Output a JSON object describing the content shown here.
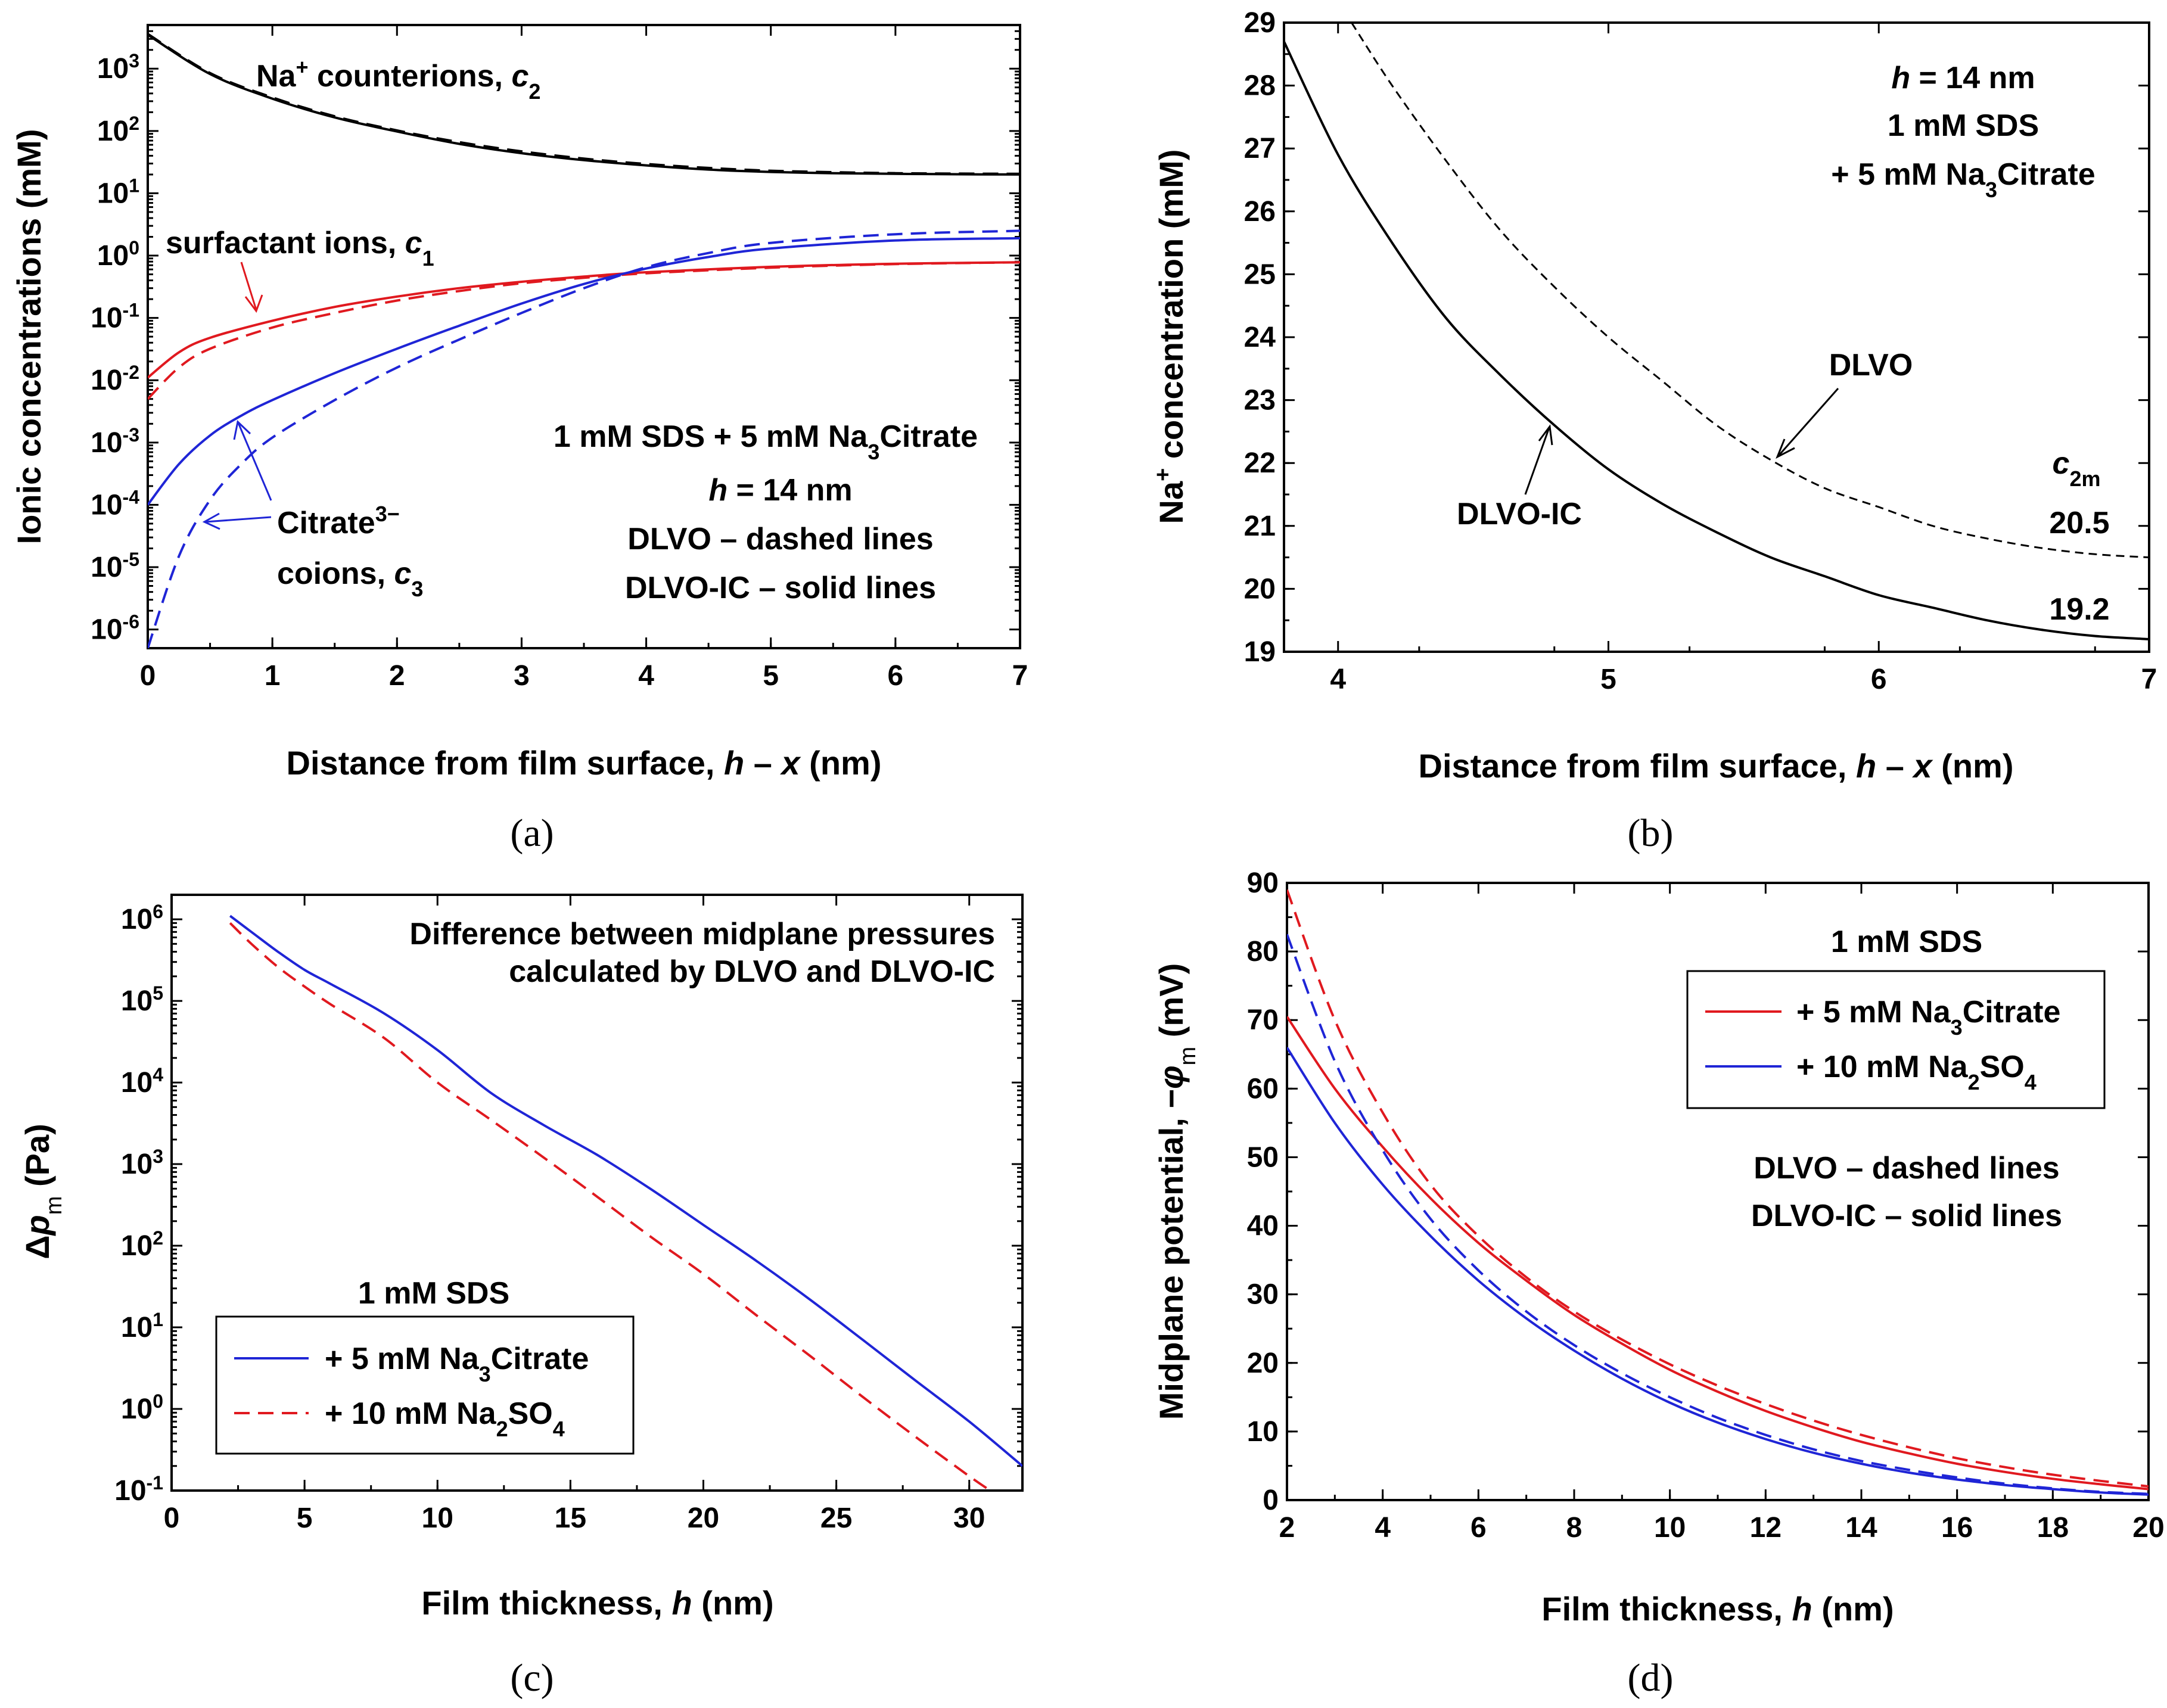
{
  "captions": {
    "a": "(a)",
    "b": "(b)",
    "c": "(c)",
    "d": "(d)"
  },
  "colors": {
    "red": "#e0191f",
    "blue": "#1f25d6",
    "black": "#000000"
  },
  "chart_data": [
    {
      "id": "a",
      "type": "line",
      "xlabel": "Distance from film surface, h − x (nm)",
      "ylabel": "Ionic concentrations (mM)",
      "xlim": [
        0,
        7
      ],
      "ylim_log10": [
        -6.3,
        3.7
      ],
      "xticks": [
        "0",
        "1",
        "2",
        "3",
        "4",
        "5",
        "6",
        "7"
      ],
      "yticks": [
        "10-6",
        "10-5",
        "10-4",
        "10-3",
        "10-2",
        "10-1",
        "100",
        "101",
        "102",
        "103"
      ],
      "annotations": {
        "na": "Na+ counterions, c2",
        "surf": "surfactant ions, c1",
        "cit1": "Citrate3−",
        "cit2": "coions, c3",
        "info1": "1 mM SDS + 5 mM Na3Citrate",
        "info2": "h = 14 nm",
        "info3": "DLVO – dashed lines",
        "info4": "DLVO-IC – solid lines"
      },
      "series": [
        {
          "name": "Na+ counterions, c2 (DLVO-IC)",
          "style": "solid",
          "color": "black",
          "x": [
            0,
            0.5,
            1,
            1.5,
            2,
            2.5,
            3,
            3.5,
            4,
            4.5,
            5,
            5.5,
            6,
            6.5,
            7
          ],
          "y": [
            3500,
            820,
            330,
            165,
            98,
            62,
            44,
            34,
            28,
            24,
            22,
            21,
            20.5,
            20.2,
            20
          ]
        },
        {
          "name": "Na+ counterions, c2 (DLVO)",
          "style": "dashed",
          "color": "black",
          "x": [
            0,
            0.5,
            1,
            1.5,
            2,
            2.5,
            3,
            3.5,
            4,
            4.5,
            5,
            5.5,
            6,
            6.5,
            7
          ],
          "y": [
            3600,
            850,
            345,
            172,
            102,
            66,
            47,
            36,
            29.5,
            25.5,
            23,
            21.8,
            21,
            20.7,
            20.5
          ]
        },
        {
          "name": "surfactant ions, c1 (DLVO-IC)",
          "style": "solid",
          "color": "red",
          "x": [
            0,
            0.25,
            0.5,
            1,
            1.5,
            2,
            2.5,
            3,
            3.5,
            4,
            5,
            6,
            7
          ],
          "y": [
            0.011,
            0.028,
            0.048,
            0.09,
            0.15,
            0.22,
            0.3,
            0.38,
            0.46,
            0.54,
            0.66,
            0.74,
            0.78
          ]
        },
        {
          "name": "surfactant ions, c1 (DLVO)",
          "style": "dashed",
          "color": "red",
          "x": [
            0,
            0.25,
            0.5,
            1,
            1.5,
            2,
            2.5,
            3,
            3.5,
            4,
            5,
            6,
            7
          ],
          "y": [
            0.005,
            0.016,
            0.032,
            0.07,
            0.12,
            0.19,
            0.27,
            0.36,
            0.44,
            0.52,
            0.64,
            0.73,
            0.78
          ]
        },
        {
          "name": "Citrate3− coions, c3 (DLVO-IC)",
          "style": "solid",
          "color": "blue",
          "x": [
            0,
            0.25,
            0.5,
            0.75,
            1,
            1.5,
            2,
            2.5,
            3,
            3.5,
            4,
            4.5,
            5,
            6,
            7
          ],
          "y": [
            0.0001,
            0.00045,
            0.0013,
            0.0027,
            0.0048,
            0.013,
            0.032,
            0.075,
            0.17,
            0.35,
            0.62,
            0.95,
            1.3,
            1.75,
            1.9
          ]
        },
        {
          "name": "Citrate3− coions, c3 (DLVO)",
          "style": "dashed",
          "color": "blue",
          "x": [
            0,
            0.25,
            0.5,
            0.75,
            1,
            1.5,
            2,
            2.5,
            3,
            3.5,
            4,
            4.5,
            5,
            6,
            7
          ],
          "y": [
            5e-07,
            1.5e-05,
            0.00012,
            0.00045,
            0.0012,
            0.0048,
            0.016,
            0.045,
            0.12,
            0.3,
            0.65,
            1.1,
            1.6,
            2.2,
            2.5
          ]
        }
      ]
    },
    {
      "id": "b",
      "type": "line",
      "xlabel": "Distance from film surface, h − x (nm)",
      "ylabel": "Na+ concentration (mM)",
      "xlim": [
        3.8,
        7
      ],
      "ylim": [
        19,
        29
      ],
      "xticks": [
        "4",
        "5",
        "6",
        "7"
      ],
      "yticks": [
        "19",
        "20",
        "21",
        "22",
        "23",
        "24",
        "25",
        "26",
        "27",
        "28",
        "29"
      ],
      "annotations": {
        "info1": "h = 14 nm",
        "info2": "1 mM SDS",
        "info3": "+ 5 mM Na3Citrate",
        "dlvo": "DLVO",
        "dlvoic": "DLVO-IC",
        "c2m": "c2m",
        "v1": "20.5",
        "v2": "19.2"
      },
      "series": [
        {
          "name": "DLVO-IC",
          "style": "solid",
          "color": "black",
          "x": [
            3.8,
            4,
            4.2,
            4.4,
            4.6,
            4.8,
            5,
            5.2,
            5.4,
            5.6,
            5.8,
            6,
            6.2,
            6.4,
            6.6,
            6.8,
            7
          ],
          "y": [
            28.7,
            26.9,
            25.5,
            24.3,
            23.4,
            22.6,
            21.9,
            21.35,
            20.9,
            20.5,
            20.2,
            19.9,
            19.7,
            19.5,
            19.35,
            19.25,
            19.2
          ]
        },
        {
          "name": "DLVO",
          "style": "dashed",
          "color": "black",
          "x": [
            4.05,
            4.2,
            4.4,
            4.6,
            4.8,
            5,
            5.2,
            5.4,
            5.6,
            5.8,
            6,
            6.2,
            6.4,
            6.6,
            6.8,
            7
          ],
          "y": [
            29,
            28.0,
            26.8,
            25.7,
            24.8,
            24.0,
            23.3,
            22.6,
            22.05,
            21.6,
            21.3,
            21.0,
            20.8,
            20.65,
            20.55,
            20.5
          ]
        }
      ]
    },
    {
      "id": "c",
      "type": "line",
      "xlabel": "Film thickness, h (nm)",
      "ylabel": "Δpm (Pa)",
      "xlim": [
        0,
        32
      ],
      "ylim_log10": [
        -1,
        6.3
      ],
      "xticks": [
        "0",
        "5",
        "10",
        "15",
        "20",
        "25",
        "30"
      ],
      "yticks": [
        "10-1",
        "100",
        "101",
        "102",
        "103",
        "104",
        "105",
        "106"
      ],
      "annotations": {
        "title1": "Difference between midplane pressures",
        "title2": "calculated by DLVO and DLVO-IC",
        "legend_title": "1 mM SDS",
        "leg1": "+ 5 mM Na3Citrate",
        "leg2": "+ 10 mM Na2SO4"
      },
      "series": [
        {
          "name": "+ 5 mM Na3Citrate",
          "style": "solid",
          "color": "blue",
          "x": [
            2.2,
            3,
            4,
            5,
            6,
            8,
            10,
            12,
            14,
            16,
            18,
            20,
            22,
            24,
            26,
            28,
            30,
            32
          ],
          "y": [
            1100000,
            700000,
            400000,
            240000,
            160000,
            70000,
            25000,
            7500,
            3000,
            1300,
            500,
            180,
            65,
            22,
            7,
            2.2,
            0.7,
            0.2
          ]
        },
        {
          "name": "+ 10 mM Na2SO4",
          "style": "dashed",
          "color": "red",
          "x": [
            2.2,
            3,
            4,
            5,
            6,
            8,
            10,
            12,
            14,
            16,
            18,
            20,
            22,
            24,
            26,
            28,
            30,
            31
          ],
          "y": [
            900000,
            500000,
            260000,
            150000,
            90000,
            35000,
            10000,
            3500,
            1200,
            400,
            130,
            45,
            14,
            4.5,
            1.4,
            0.45,
            0.15,
            0.09
          ]
        }
      ]
    },
    {
      "id": "d",
      "type": "line",
      "xlabel": "Film thickness, h (nm)",
      "ylabel": "Midplane potential, −φm (mV)",
      "xlim": [
        2,
        20
      ],
      "ylim": [
        0,
        90
      ],
      "xticks": [
        "2",
        "4",
        "6",
        "8",
        "10",
        "12",
        "14",
        "16",
        "18",
        "20"
      ],
      "yticks": [
        "0",
        "10",
        "20",
        "30",
        "40",
        "50",
        "60",
        "70",
        "80",
        "90"
      ],
      "annotations": {
        "legend_title": "1 mM SDS",
        "leg1": "+ 5 mM Na3Citrate",
        "leg2": "+ 10 mM Na2SO4",
        "info1": "DLVO – dashed lines",
        "info2": "DLVO-IC – solid lines"
      },
      "series": [
        {
          "name": "+ 5 mM Na3Citrate (DLVO-IC)",
          "style": "solid",
          "color": "red",
          "x": [
            2,
            3,
            4,
            5,
            6,
            7,
            8,
            9,
            10,
            11,
            12,
            13,
            14,
            15,
            16,
            17,
            18,
            19,
            20
          ],
          "y": [
            70.5,
            60,
            51.5,
            44,
            37.5,
            32,
            27,
            22.8,
            19,
            15.8,
            13,
            10.6,
            8.5,
            6.8,
            5.3,
            4.1,
            3.1,
            2.3,
            1.6
          ]
        },
        {
          "name": "+ 5 mM Na3Citrate (DLVO)",
          "style": "dashed",
          "color": "red",
          "x": [
            2,
            3,
            4,
            5,
            6,
            7,
            8,
            9,
            10,
            11,
            12,
            13,
            14,
            15,
            16,
            17,
            18,
            19,
            20
          ],
          "y": [
            89,
            70,
            56.5,
            46,
            38.5,
            32.5,
            27.5,
            23.4,
            19.8,
            16.7,
            14,
            11.6,
            9.5,
            7.7,
            6.1,
            4.8,
            3.7,
            2.8,
            2.0
          ]
        },
        {
          "name": "+ 10 mM Na2SO4 (DLVO-IC)",
          "style": "solid",
          "color": "blue",
          "x": [
            2,
            3,
            4,
            5,
            6,
            7,
            8,
            9,
            10,
            11,
            12,
            13,
            14,
            15,
            16,
            17,
            18,
            19,
            20
          ],
          "y": [
            66,
            55,
            46,
            38.5,
            32,
            26.5,
            21.8,
            17.7,
            14.2,
            11.3,
            8.9,
            6.9,
            5.3,
            4.0,
            3.0,
            2.2,
            1.6,
            1.1,
            0.8
          ]
        },
        {
          "name": "+ 10 mM Na2SO4 (DLVO)",
          "style": "dashed",
          "color": "blue",
          "x": [
            2,
            3,
            4,
            5,
            6,
            7,
            8,
            9,
            10,
            11,
            12,
            13,
            14,
            15,
            16,
            17,
            18,
            19,
            20
          ],
          "y": [
            82.5,
            64,
            51,
            41,
            33.5,
            27.5,
            22.6,
            18.5,
            15,
            12,
            9.5,
            7.4,
            5.7,
            4.4,
            3.3,
            2.4,
            1.7,
            1.2,
            0.9
          ]
        }
      ]
    }
  ]
}
